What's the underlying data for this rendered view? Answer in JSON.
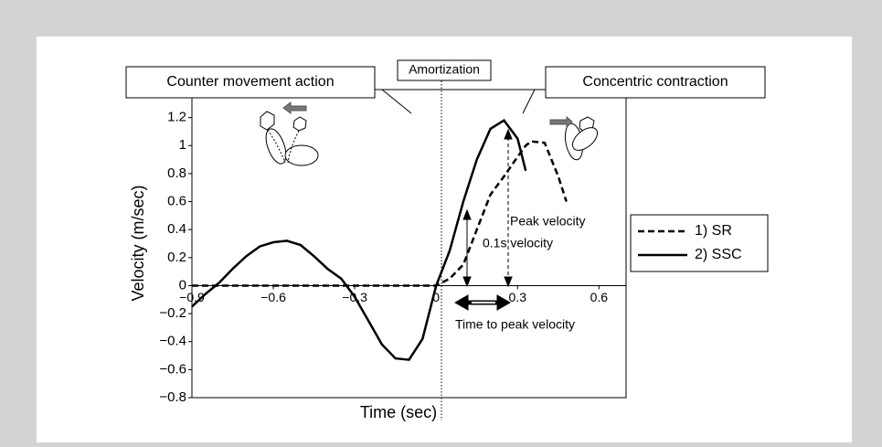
{
  "chart_data": {
    "type": "line",
    "x_label": "Time (sec)",
    "y_label": "Velocity (m/sec)",
    "annotations": {
      "counter": "Counter movement action",
      "amortization": "Amortization",
      "concentric": "Concentric contraction",
      "peak": "Peak velocity",
      "v01": "0.1s velocity",
      "ttp": "Time to peak velocity"
    },
    "x": [
      -0.9,
      -0.85,
      -0.8,
      -0.75,
      -0.7,
      -0.65,
      -0.6,
      -0.55,
      -0.5,
      -0.45,
      -0.4,
      -0.35,
      -0.3,
      -0.25,
      -0.2,
      -0.15,
      -0.1,
      -0.05,
      0,
      0.05,
      0.1,
      0.15,
      0.2,
      0.25,
      0.3,
      0.33,
      0.35,
      0.4,
      0.45,
      0.48
    ],
    "series": [
      {
        "name": "1) SR",
        "color": "#000000",
        "style": "dashed",
        "values": [
          0,
          0,
          0,
          0,
          0,
          0,
          0,
          0,
          0,
          0,
          0,
          0,
          0,
          0,
          0,
          0,
          0,
          0,
          0,
          0.05,
          0.15,
          0.4,
          0.65,
          0.78,
          0.92,
          1.0,
          1.03,
          1.02,
          0.78,
          0.6
        ]
      },
      {
        "name": "2) SSC",
        "color": "#000000",
        "style": "solid",
        "values": [
          -0.15,
          -0.06,
          0.02,
          0.12,
          0.21,
          0.28,
          0.31,
          0.32,
          0.29,
          0.21,
          0.12,
          0.05,
          -0.08,
          -0.25,
          -0.42,
          -0.52,
          -0.53,
          -0.38,
          0,
          0.25,
          0.6,
          0.9,
          1.12,
          1.18,
          1.05,
          0.82,
          null,
          null,
          null,
          null
        ]
      }
    ],
    "xlim": [
      -0.9,
      0.7
    ],
    "ylim": [
      -0.8,
      1.4
    ],
    "xticks": [
      {
        "value": -0.9,
        "label": "−0.9"
      },
      {
        "value": -0.6,
        "label": "−0.6"
      },
      {
        "value": -0.3,
        "label": "−0.3"
      },
      0,
      0.3,
      0.6
    ],
    "yticks": [
      {
        "value": -0.8,
        "label": "−0.8"
      },
      {
        "value": -0.6,
        "label": "−0.6"
      },
      {
        "value": -0.4,
        "label": "−0.4"
      },
      {
        "value": -0.2,
        "label": "−0.2"
      },
      0,
      0.2,
      0.4,
      0.6,
      0.8,
      1,
      1.2
    ],
    "grid": false,
    "legend": "right"
  }
}
